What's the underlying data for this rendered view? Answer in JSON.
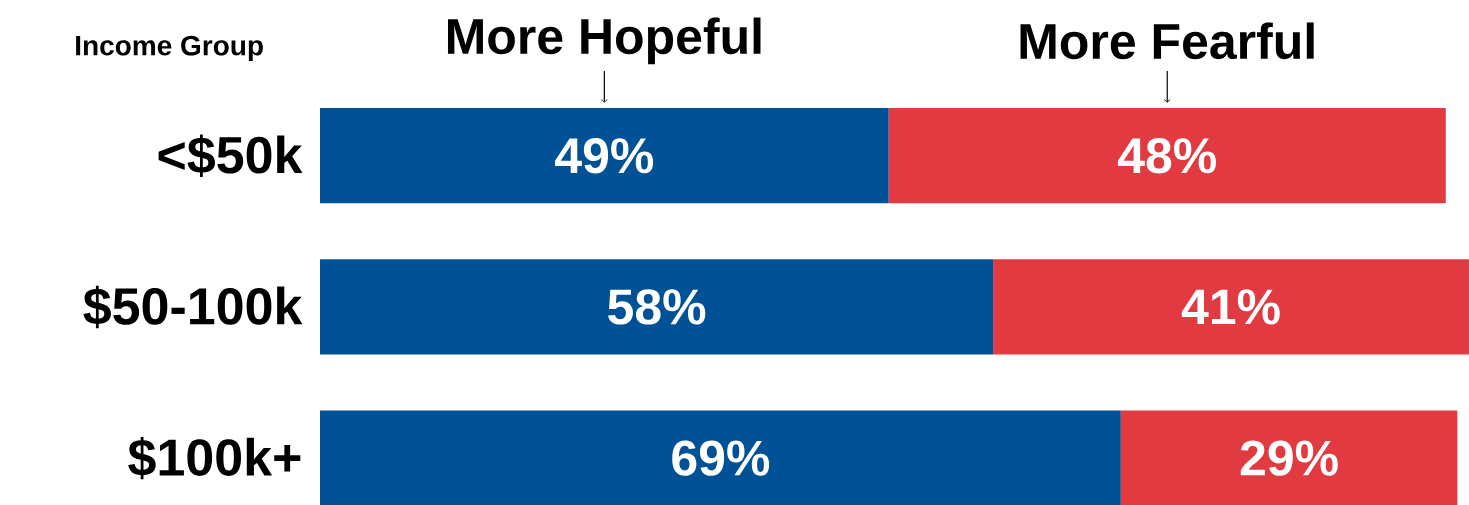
{
  "chart_data": {
    "type": "bar",
    "orientation": "horizontal",
    "stacked": true,
    "ylabel": "Income Group",
    "categories": [
      "<$50k",
      "$50-100k",
      "$100k+"
    ],
    "series": [
      {
        "name": "More Hopeful",
        "color": "#005195",
        "values": [
          49,
          58,
          69
        ],
        "value_labels": [
          "49%",
          "58%",
          "69%"
        ]
      },
      {
        "name": "More Fearful",
        "color": "#e13a40",
        "values": [
          48,
          41,
          29
        ],
        "value_labels": [
          "48%",
          "41%",
          "29%"
        ]
      }
    ],
    "tick_labels": "y"
  }
}
